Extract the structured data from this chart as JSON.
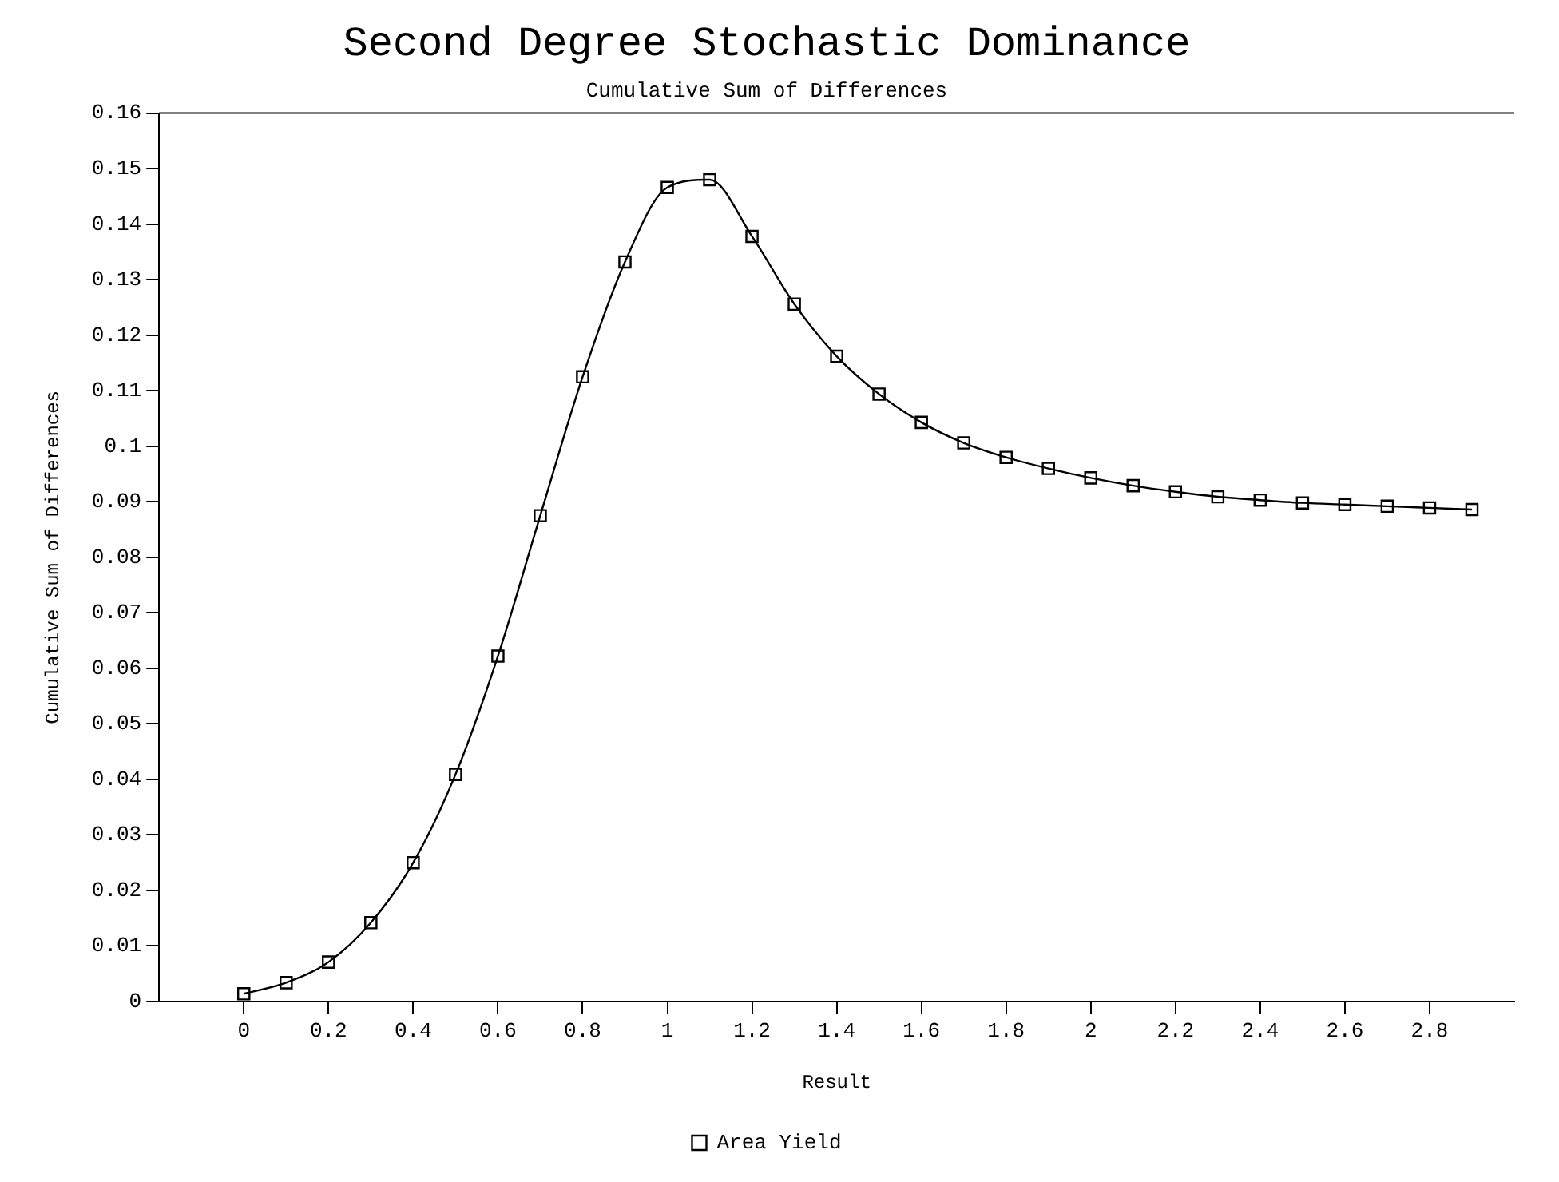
{
  "chart_data": {
    "type": "line",
    "title": "Second Degree Stochastic Dominance",
    "subtitle": "Cumulative Sum of Differences",
    "xlabel": "Result",
    "ylabel": "Cumulative Sum of Differences",
    "x": [
      0,
      0.1,
      0.2,
      0.3,
      0.4,
      0.5,
      0.6,
      0.7,
      0.8,
      0.9,
      1.0,
      1.1,
      1.2,
      1.3,
      1.4,
      1.5,
      1.6,
      1.7,
      1.8,
      1.9,
      2.0,
      2.1,
      2.2,
      2.3,
      2.4,
      2.5,
      2.6,
      2.7,
      2.8,
      2.9
    ],
    "series": [
      {
        "name": "Area Yield",
        "color": "#000000",
        "values": [
          0.0014,
          0.0034,
          0.0071,
          0.0142,
          0.025,
          0.0409,
          0.0622,
          0.0875,
          0.1125,
          0.1332,
          0.1466,
          0.148,
          0.1378,
          0.1256,
          0.1162,
          0.1094,
          0.1043,
          0.1006,
          0.098,
          0.096,
          0.0943,
          0.0929,
          0.0918,
          0.0909,
          0.0903,
          0.0898,
          0.0895,
          0.0892,
          0.0889,
          0.0886
        ]
      }
    ],
    "xlim": [
      -0.2,
      3.0
    ],
    "xticks": [
      0,
      0.2,
      0.4,
      0.6,
      0.8,
      1,
      1.2,
      1.4,
      1.6,
      1.8,
      2,
      2.2,
      2.4,
      2.6,
      2.8
    ],
    "ylim": [
      0,
      0.16
    ],
    "yticks": [
      0,
      0.01,
      0.02,
      0.03,
      0.04,
      0.05,
      0.06,
      0.07,
      0.08,
      0.09,
      0.1,
      0.11,
      0.12,
      0.13,
      0.14,
      0.15,
      0.16
    ],
    "grid": false,
    "legend": "bottom",
    "marker": "square",
    "line_style": "solid"
  }
}
